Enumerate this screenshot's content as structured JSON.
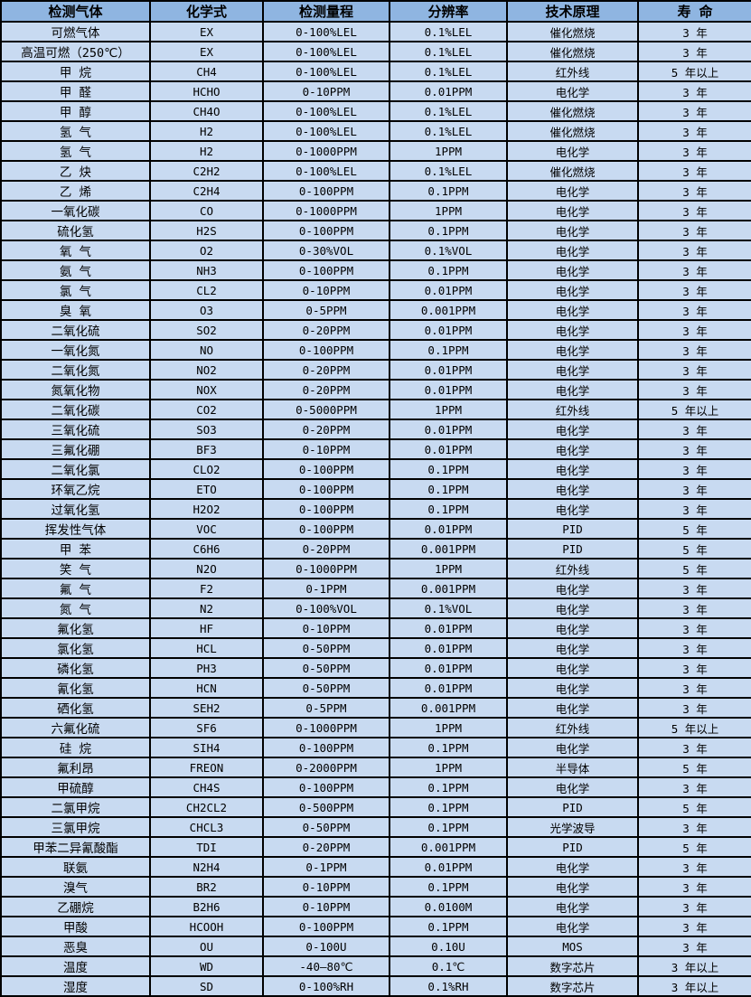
{
  "colors": {
    "header_bg": "#8fb5e1",
    "row_bg": "#c8daf1",
    "border": "#000000",
    "text": "#000000"
  },
  "table": {
    "columns": [
      "检测气体",
      "化学式",
      "检测量程",
      "分辨率",
      "技术原理",
      "寿 命"
    ],
    "rows": [
      [
        "可燃气体",
        "EX",
        "0-100%LEL",
        "0.1%LEL",
        "催化燃烧",
        "3 年"
      ],
      [
        "高温可燃（250℃）",
        "EX",
        "0-100%LEL",
        "0.1%LEL",
        "催化燃烧",
        "3 年"
      ],
      [
        "甲 烷",
        "CH4",
        "0-100%LEL",
        "0.1%LEL",
        "红外线",
        "5 年以上"
      ],
      [
        "甲 醛",
        "HCHO",
        "0-10PPM",
        "0.01PPM",
        "电化学",
        "3 年"
      ],
      [
        "甲 醇",
        "CH4O",
        "0-100%LEL",
        "0.1%LEL",
        "催化燃烧",
        "3 年"
      ],
      [
        "氢 气",
        "H2",
        "0-100%LEL",
        "0.1%LEL",
        "催化燃烧",
        "3 年"
      ],
      [
        "氢 气",
        "H2",
        "0-1000PPM",
        "1PPM",
        "电化学",
        "3 年"
      ],
      [
        "乙 炔",
        "C2H2",
        "0-100%LEL",
        "0.1%LEL",
        "催化燃烧",
        "3 年"
      ],
      [
        "乙 烯",
        "C2H4",
        "0-100PPM",
        "0.1PPM",
        "电化学",
        "3 年"
      ],
      [
        "一氧化碳",
        "CO",
        "0-1000PPM",
        "1PPM",
        "电化学",
        "3 年"
      ],
      [
        "硫化氢",
        "H2S",
        "0-100PPM",
        "0.1PPM",
        "电化学",
        "3 年"
      ],
      [
        "氧 气",
        "O2",
        "0-30%VOL",
        "0.1%VOL",
        "电化学",
        "3 年"
      ],
      [
        "氨 气",
        "NH3",
        "0-100PPM",
        "0.1PPM",
        "电化学",
        "3 年"
      ],
      [
        "氯 气",
        "CL2",
        "0-10PPM",
        "0.01PPM",
        "电化学",
        "3 年"
      ],
      [
        "臭 氧",
        "O3",
        "0-5PPM",
        "0.001PPM",
        "电化学",
        "3 年"
      ],
      [
        "二氧化硫",
        "SO2",
        "0-20PPM",
        "0.01PPM",
        "电化学",
        "3 年"
      ],
      [
        "一氧化氮",
        "NO",
        "0-100PPM",
        "0.1PPM",
        "电化学",
        "3 年"
      ],
      [
        "二氧化氮",
        "NO2",
        "0-20PPM",
        "0.01PPM",
        "电化学",
        "3 年"
      ],
      [
        "氮氧化物",
        "NOX",
        "0-20PPM",
        "0.01PPM",
        "电化学",
        "3 年"
      ],
      [
        "二氧化碳",
        "CO2",
        "0-5000PPM",
        "1PPM",
        "红外线",
        "5 年以上"
      ],
      [
        "三氧化硫",
        "SO3",
        "0-20PPM",
        "0.01PPM",
        "电化学",
        "3 年"
      ],
      [
        "三氟化硼",
        "BF3",
        "0-10PPM",
        "0.01PPM",
        "电化学",
        "3 年"
      ],
      [
        "二氧化氯",
        "CLO2",
        "0-100PPM",
        "0.1PPM",
        "电化学",
        "3 年"
      ],
      [
        "环氧乙烷",
        "ETO",
        "0-100PPM",
        "0.1PPM",
        "电化学",
        "3 年"
      ],
      [
        "过氧化氢",
        "H2O2",
        "0-100PPM",
        "0.1PPM",
        "电化学",
        "3 年"
      ],
      [
        "挥发性气体",
        "VOC",
        "0-100PPM",
        "0.01PPM",
        "PID",
        "5 年"
      ],
      [
        "甲 苯",
        "C6H6",
        "0-20PPM",
        "0.001PPM",
        "PID",
        "5 年"
      ],
      [
        "笑 气",
        "N2O",
        "0-1000PPM",
        "1PPM",
        "红外线",
        "5 年"
      ],
      [
        "氟 气",
        "F2",
        "0-1PPM",
        "0.001PPM",
        "电化学",
        "3 年"
      ],
      [
        "氮 气",
        "N2",
        "0-100%VOL",
        "0.1%VOL",
        "电化学",
        "3 年"
      ],
      [
        "氟化氢",
        "HF",
        "0-10PPM",
        "0.01PPM",
        "电化学",
        "3 年"
      ],
      [
        "氯化氢",
        "HCL",
        "0-50PPM",
        "0.01PPM",
        "电化学",
        "3 年"
      ],
      [
        "磷化氢",
        "PH3",
        "0-50PPM",
        "0.01PPM",
        "电化学",
        "3 年"
      ],
      [
        "氰化氢",
        "HCN",
        "0-50PPM",
        "0.01PPM",
        "电化学",
        "3 年"
      ],
      [
        "硒化氢",
        "SEH2",
        "0-5PPM",
        "0.001PPM",
        "电化学",
        "3 年"
      ],
      [
        "六氟化硫",
        "SF6",
        "0-1000PPM",
        "1PPM",
        "红外线",
        "5 年以上"
      ],
      [
        "硅 烷",
        "SIH4",
        "0-100PPM",
        "0.1PPM",
        "电化学",
        "3 年"
      ],
      [
        "氟利昂",
        "FREON",
        "0-2000PPM",
        "1PPM",
        "半导体",
        "5 年"
      ],
      [
        "甲硫醇",
        "CH4S",
        "0-100PPM",
        "0.1PPM",
        "电化学",
        "3 年"
      ],
      [
        "二氯甲烷",
        "CH2CL2",
        "0-500PPM",
        "0.1PPM",
        "PID",
        "5 年"
      ],
      [
        "三氯甲烷",
        "CHCL3",
        "0-50PPM",
        "0.1PPM",
        "光学波导",
        "3 年"
      ],
      [
        "甲苯二异氰酸酯",
        "TDI",
        "0-20PPM",
        "0.001PPM",
        "PID",
        "5 年"
      ],
      [
        "联氨",
        "N2H4",
        "0-1PPM",
        "0.01PPM",
        "电化学",
        "3 年"
      ],
      [
        "溴气",
        "BR2",
        "0-10PPM",
        "0.1PPM",
        "电化学",
        "3 年"
      ],
      [
        "乙硼烷",
        "B2H6",
        "0-10PPM",
        "0.0100M",
        "电化学",
        "3 年"
      ],
      [
        "甲酸",
        "HCOOH",
        "0-100PPM",
        "0.1PPM",
        "电化学",
        "3 年"
      ],
      [
        "恶臭",
        "OU",
        "0-100U",
        "0.10U",
        "MOS",
        "3 年"
      ],
      [
        "温度",
        "WD",
        "-40—80℃",
        "0.1℃",
        "数字芯片",
        "3 年以上"
      ],
      [
        "湿度",
        "SD",
        "0-100%RH",
        "0.1%RH",
        "数字芯片",
        "3 年以上"
      ]
    ]
  }
}
